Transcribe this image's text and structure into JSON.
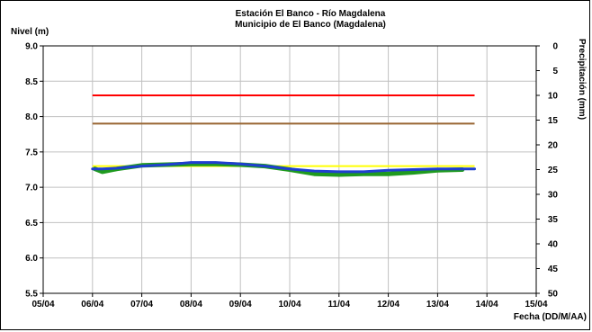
{
  "chart_data": {
    "type": "line",
    "title_line1": "Estación El Banco - Río Magdalena",
    "title_line2": "Municipio de El Banco (Magdalena)",
    "ylabel": "Nivel (m)",
    "y2label": "Precipitación (mm)",
    "xlabel": "Fecha (DD/M/AA)",
    "ylim": [
      5.5,
      9.0
    ],
    "y_ticks": [
      "9.0",
      "8.5",
      "8.0",
      "7.5",
      "7.0",
      "6.5",
      "6.0",
      "5.5"
    ],
    "y_tick_values": [
      9.0,
      8.5,
      8.0,
      7.5,
      7.0,
      6.5,
      6.0,
      5.5
    ],
    "y2lim": [
      0,
      50
    ],
    "y2_reversed": true,
    "y2_ticks": [
      "0",
      "5",
      "10",
      "15",
      "20",
      "25",
      "30",
      "35",
      "40",
      "45",
      "50"
    ],
    "x_ticks": [
      "05/04",
      "06/04",
      "07/04",
      "08/04",
      "09/04",
      "10/04",
      "11/04",
      "12/04",
      "13/04",
      "14/04",
      "15/04"
    ],
    "xlim": [
      0,
      10
    ],
    "grid": true,
    "threshold_lines": [
      {
        "value": 8.3,
        "color": "#ff0000",
        "x_range": [
          1.0,
          8.75
        ]
      },
      {
        "value": 7.9,
        "color": "#996633",
        "x_range": [
          1.0,
          8.75
        ]
      },
      {
        "value": 7.3,
        "color": "#ffff00",
        "x_range": [
          1.0,
          8.75
        ]
      }
    ],
    "series": [
      {
        "color": "#1f9a1f",
        "x": [
          1.05,
          1.2,
          1.5,
          2.0,
          2.5,
          3.0,
          3.5,
          4.0,
          4.5,
          5.0,
          5.5,
          6.0,
          6.5,
          7.0,
          7.5,
          8.0,
          8.5
        ],
        "y": [
          7.26,
          7.22,
          7.26,
          7.31,
          7.32,
          7.33,
          7.33,
          7.32,
          7.3,
          7.25,
          7.19,
          7.18,
          7.19,
          7.19,
          7.21,
          7.24,
          7.25
        ]
      },
      {
        "color": "#1f3fd0",
        "x": [
          1.0,
          1.2,
          1.5,
          2.0,
          2.5,
          3.0,
          3.5,
          4.0,
          4.5,
          5.0,
          5.5,
          6.0,
          6.5,
          7.0,
          7.5,
          8.0,
          8.5,
          8.75
        ],
        "y": [
          7.26,
          7.26,
          7.27,
          7.3,
          7.32,
          7.35,
          7.35,
          7.33,
          7.3,
          7.26,
          7.23,
          7.22,
          7.22,
          7.24,
          7.25,
          7.26,
          7.26,
          7.26
        ]
      }
    ]
  }
}
